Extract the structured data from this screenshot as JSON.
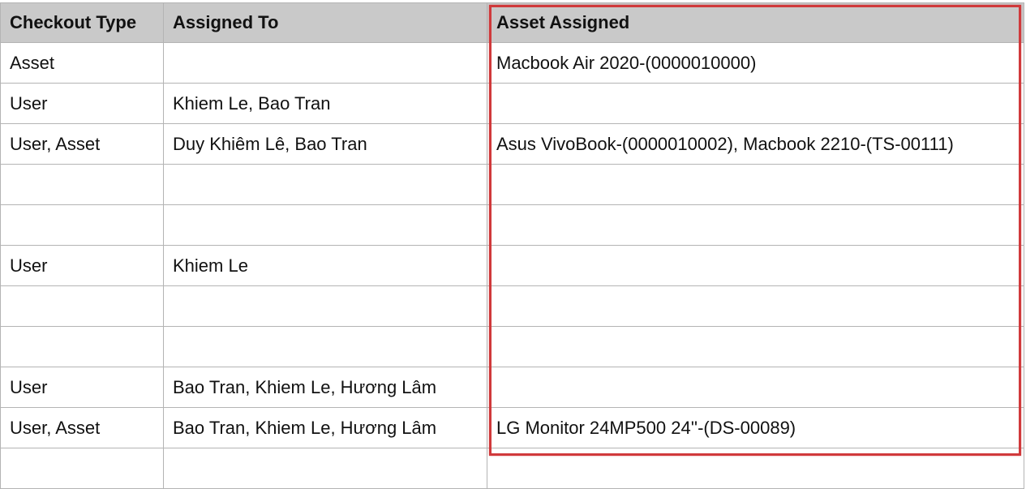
{
  "table": {
    "headers": [
      "Checkout Type",
      "Assigned To",
      "Asset Assigned"
    ],
    "rows": [
      [
        "Asset",
        "",
        "Macbook Air 2020-(0000010000)"
      ],
      [
        "User",
        "Khiem Le, Bao Tran",
        ""
      ],
      [
        "User, Asset",
        "Duy Khiêm Lê, Bao Tran",
        "Asus VivoBook-(0000010002), Macbook 2210-(TS-00111)"
      ],
      [
        "",
        "",
        ""
      ],
      [
        "",
        "",
        ""
      ],
      [
        "User",
        "Khiem Le",
        ""
      ],
      [
        "",
        "",
        ""
      ],
      [
        "",
        "",
        ""
      ],
      [
        "User",
        "Bao Tran, Khiem Le, Hương Lâm",
        ""
      ],
      [
        "User, Asset",
        "Bao Tran, Khiem Le, Hương Lâm",
        "LG Monitor 24MP500 24''-(DS-00089)"
      ],
      [
        "",
        "",
        ""
      ]
    ]
  },
  "highlight_color": "#d0393b"
}
